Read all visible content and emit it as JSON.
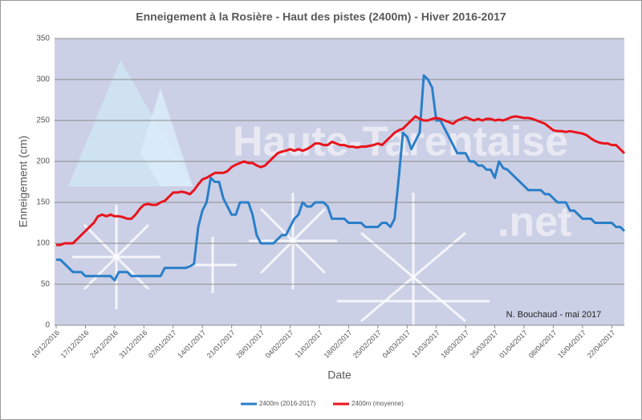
{
  "chart_data": {
    "type": "line",
    "title": "Enneigement à la Rosière - Haut des pistes (2400m) - Hiver 2016-2017",
    "ylabel": "Enneigement (cm)",
    "xlabel": "Date",
    "annotation": "N. Bouchaud - mai 2017",
    "watermark": [
      "Haute-Tarentaise",
      ".net"
    ],
    "categories": [
      "10/12/2016",
      null,
      null,
      null,
      null,
      null,
      null,
      "17/12/2016",
      null,
      null,
      null,
      null,
      null,
      null,
      "24/12/2016",
      null,
      null,
      null,
      null,
      null,
      null,
      "31/12/2016",
      null,
      null,
      null,
      null,
      null,
      null,
      "07/01/2017",
      null,
      null,
      null,
      null,
      null,
      null,
      "14/01/2017",
      null,
      null,
      null,
      null,
      null,
      null,
      "21/01/2017",
      null,
      null,
      null,
      null,
      null,
      null,
      "28/01/2017",
      null,
      null,
      null,
      null,
      null,
      null,
      "04/02/2017",
      null,
      null,
      null,
      null,
      null,
      null,
      "11/02/2017",
      null,
      null,
      null,
      null,
      null,
      null,
      "18/02/2017",
      null,
      null,
      null,
      null,
      null,
      null,
      "25/02/2017",
      null,
      null,
      null,
      null,
      null,
      null,
      "04/03/2017",
      null,
      null,
      null,
      null,
      null,
      null,
      "11/03/2017",
      null,
      null,
      null,
      null,
      null,
      null,
      "18/03/2017",
      null,
      null,
      null,
      null,
      null,
      null,
      "25/03/2017",
      null,
      null,
      null,
      null,
      null,
      null,
      "01/04/2017",
      null,
      null,
      null,
      null,
      null,
      null,
      "08/04/2017",
      null,
      null,
      null,
      null,
      null,
      null,
      "15/04/2017",
      null,
      null,
      null,
      null,
      null,
      null,
      "22/04/2017",
      null,
      null,
      null
    ],
    "series": [
      {
        "name": "2400m (2016-2017)",
        "color": "#2a7fc8",
        "values": [
          80,
          80,
          75,
          70,
          65,
          65,
          65,
          60,
          60,
          60,
          60,
          60,
          60,
          60,
          55,
          65,
          65,
          65,
          60,
          60,
          60,
          60,
          60,
          60,
          60,
          60,
          70,
          70,
          70,
          70,
          70,
          70,
          72,
          75,
          120,
          140,
          150,
          180,
          175,
          175,
          155,
          145,
          135,
          135,
          150,
          150,
          150,
          135,
          110,
          100,
          100,
          100,
          100,
          105,
          110,
          110,
          120,
          130,
          135,
          150,
          145,
          145,
          150,
          150,
          150,
          145,
          130,
          130,
          130,
          130,
          125,
          125,
          125,
          125,
          120,
          120,
          120,
          120,
          125,
          125,
          120,
          130,
          180,
          235,
          230,
          215,
          225,
          235,
          305,
          300,
          290,
          250,
          250,
          240,
          230,
          220,
          210,
          210,
          210,
          200,
          200,
          195,
          195,
          190,
          190,
          180,
          200,
          192,
          190,
          185,
          180,
          175,
          170,
          165,
          165,
          165,
          165,
          160,
          160,
          155,
          150,
          150,
          150,
          140,
          140,
          135,
          130,
          130,
          130,
          125,
          125,
          125,
          125,
          125,
          120,
          120,
          115
        ]
      },
      {
        "name": "2400m (moyenne)",
        "color": "#e8141c",
        "values": [
          98,
          98,
          100,
          100,
          100,
          105,
          110,
          115,
          120,
          125,
          133,
          135,
          133,
          135,
          133,
          133,
          132,
          130,
          130,
          135,
          142,
          147,
          148,
          147,
          147,
          150,
          152,
          157,
          162,
          162,
          163,
          162,
          160,
          165,
          172,
          178,
          180,
          183,
          186,
          186,
          186,
          188,
          193,
          196,
          198,
          200,
          198,
          198,
          195,
          193,
          195,
          200,
          205,
          210,
          212,
          213,
          215,
          213,
          215,
          213,
          215,
          218,
          222,
          222,
          220,
          220,
          224,
          222,
          220,
          220,
          218,
          218,
          217,
          218,
          218,
          219,
          220,
          222,
          220,
          225,
          230,
          235,
          238,
          240,
          245,
          250,
          255,
          252,
          250,
          250,
          252,
          253,
          252,
          250,
          248,
          246,
          250,
          252,
          254,
          252,
          250,
          252,
          250,
          252,
          252,
          250,
          251,
          250,
          252,
          254,
          255,
          254,
          253,
          253,
          252,
          250,
          248,
          246,
          242,
          238,
          237,
          237,
          236,
          237,
          236,
          235,
          234,
          232,
          228,
          225,
          223,
          222,
          222,
          220,
          220,
          215,
          210
        ]
      }
    ],
    "ylim": [
      0,
      350
    ],
    "yticks": [
      0,
      50,
      100,
      150,
      200,
      250,
      300,
      350
    ],
    "grid": true
  }
}
